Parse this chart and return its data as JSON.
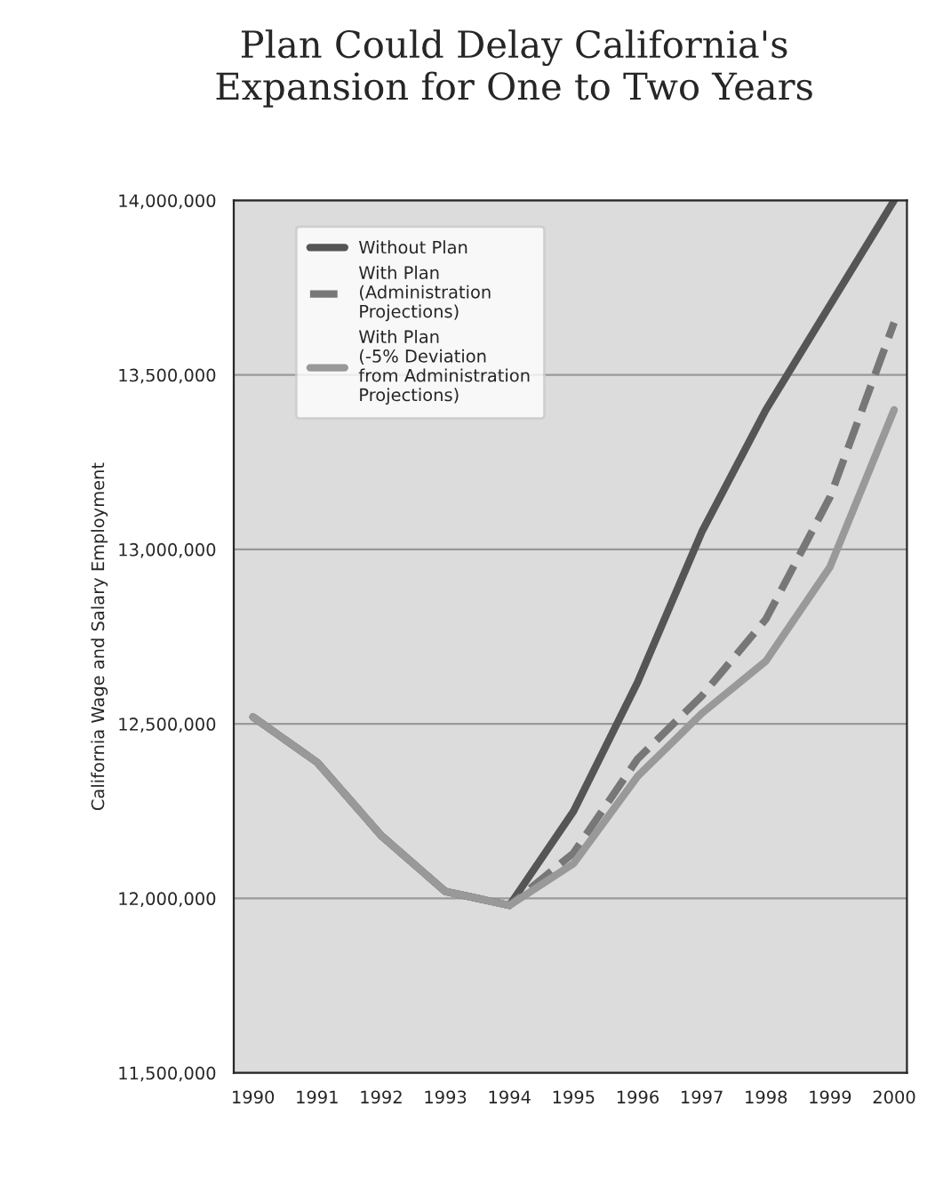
{
  "chart_data": {
    "type": "line",
    "title": "Plan Could Delay California's\nExpansion for One to Two Years",
    "ylabel": "California Wage and Salary Employment",
    "categories": [
      "1990",
      "1991",
      "1992",
      "1993",
      "1994",
      "1995",
      "1996",
      "1997",
      "1998",
      "1999",
      "2000"
    ],
    "series": [
      {
        "name": "Without Plan",
        "color": "#555555",
        "line_style": "solid",
        "values": [
          12520000,
          12390000,
          12180000,
          12020000,
          11980000,
          12250000,
          12620000,
          13050000,
          13400000,
          13700000,
          14000000
        ]
      },
      {
        "name": "With Plan\n(Administration\nProjections)",
        "color": "#777777",
        "line_style": "dashed",
        "values": [
          12520000,
          12390000,
          12180000,
          12020000,
          11980000,
          12130000,
          12400000,
          12580000,
          12800000,
          13150000,
          13650000
        ]
      },
      {
        "name": "With Plan\n(-5% Deviation\nfrom Administration\nProjections)",
        "color": "#999999",
        "line_style": "solid",
        "values": [
          12520000,
          12390000,
          12180000,
          12020000,
          11980000,
          12100000,
          12350000,
          12530000,
          12680000,
          12950000,
          13400000
        ]
      }
    ],
    "ylim": [
      11500000,
      14000000
    ],
    "yticks": [
      {
        "value": 11500000,
        "label": "11,500,000"
      },
      {
        "value": 12000000,
        "label": "12,000,000"
      },
      {
        "value": 12500000,
        "label": "12,500,000"
      },
      {
        "value": 13000000,
        "label": "13,000,000"
      },
      {
        "value": 13500000,
        "label": "13,500,000"
      },
      {
        "value": 14000000,
        "label": "14,000,000"
      }
    ],
    "grid": "y",
    "legend": "top left"
  }
}
